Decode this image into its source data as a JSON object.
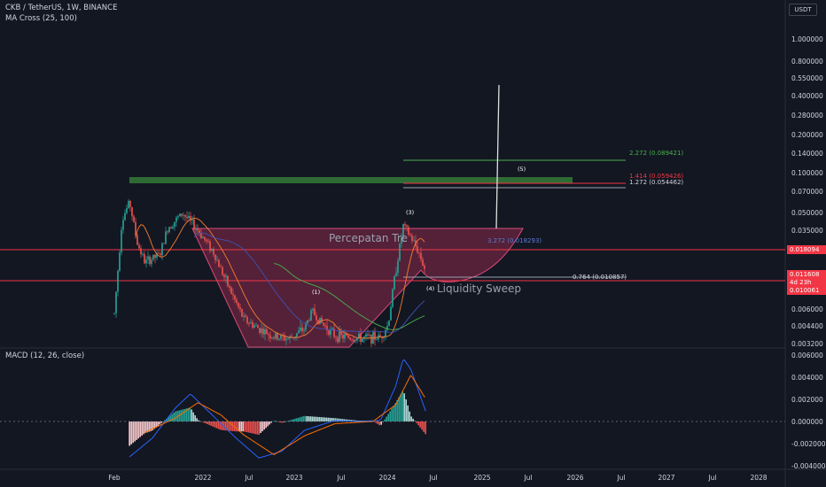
{
  "header": {
    "symbol_title": "CKB / TetherUS, 1W, BINANCE",
    "indicator_ma": "MA Cross (25, 100)",
    "indicator_macd": "MACD (12, 26, close)"
  },
  "price_axis": {
    "currency": "USDT",
    "ticks": [
      "1.000000",
      "0.800000",
      "0.550000",
      "0.400000",
      "0.280000",
      "0.200000",
      "0.140000",
      "0.100000",
      "0.070000",
      "0.050000",
      "0.035000",
      "0.025000",
      "0.006000",
      "0.004400",
      "0.003200"
    ],
    "badges": {
      "level_upper": "0.018094",
      "current_price": "0.011608",
      "countdown": "4d 23h",
      "level_lower": "0.010061"
    }
  },
  "macd_axis": {
    "ticks": [
      "0.006000",
      "0.004000",
      "0.002000",
      "0.000000",
      "-0.002000",
      "-0.004000"
    ]
  },
  "time_axis": {
    "labels": [
      "Feb",
      "2022",
      "Jul",
      "2023",
      "Jul",
      "2024",
      "Jul",
      "2025",
      "Jul",
      "2026",
      "Jul",
      "2027",
      "Jul",
      "2028"
    ]
  },
  "annotations": {
    "fib_1": "2.272 (0.089421)",
    "fib_2": "1.414 (0.059426)",
    "fib_3": "1.272 (0.054462)",
    "fib_4": "0.764 (0.010857)",
    "fib_5": "3.272 (0.018293)",
    "wave_1": "(1)",
    "wave_3": "(3)",
    "wave_4": "(4)",
    "wave_5": "(5)",
    "text_trend": "Percepatan Tre",
    "text_sweep": "Liquidity Sweep"
  },
  "colors": {
    "background": "#131722",
    "up": "#26a69a",
    "down": "#ef5350",
    "level_line": "#f23645",
    "cup_fill": "#8a2a4a",
    "supply_zone": "#2e6b34",
    "ma_fast": "#f57c33",
    "ma_slow": "#3f51b5",
    "ma_long": "#4caf50"
  },
  "chart_data": [
    {
      "type": "candlestick",
      "title": "CKB / TetherUS, 1W, BINANCE",
      "y_scale": "log",
      "ylim": [
        0.0032,
        1.0
      ],
      "x_labels": [
        "Feb",
        "2022",
        "Jul",
        "2023",
        "Jul",
        "2024",
        "Jul",
        "2025",
        "Jul",
        "2026",
        "Jul",
        "2027",
        "Jul",
        "2028"
      ],
      "price_path": [
        [
          "2021-02",
          0.0055
        ],
        [
          "2021-03",
          0.03
        ],
        [
          "2021-04",
          0.042
        ],
        [
          "2021-05",
          0.02
        ],
        [
          "2021-06",
          0.014
        ],
        [
          "2021-08",
          0.016
        ],
        [
          "2021-09",
          0.026
        ],
        [
          "2021-11",
          0.034
        ],
        [
          "2022-01",
          0.025
        ],
        [
          "2022-03",
          0.017
        ],
        [
          "2022-05",
          0.009
        ],
        [
          "2022-07",
          0.005
        ],
        [
          "2022-09",
          0.0042
        ],
        [
          "2022-11",
          0.0036
        ],
        [
          "2023-01",
          0.0035
        ],
        [
          "2023-03",
          0.0042
        ],
        [
          "2023-04",
          0.0058
        ],
        [
          "2023-05",
          0.0048
        ],
        [
          "2023-07",
          0.0037
        ],
        [
          "2023-10",
          0.0035
        ],
        [
          "2024-01",
          0.0036
        ],
        [
          "2024-02",
          0.0045
        ],
        [
          "2024-03",
          0.012
        ],
        [
          "2024-04",
          0.027
        ],
        [
          "2024-05",
          0.022
        ],
        [
          "2024-06",
          0.017
        ],
        [
          "2024-07",
          0.011608
        ]
      ],
      "levels": [
        0.018094,
        0.010061
      ],
      "fib_levels": [
        {
          "ratio": 2.272,
          "price": 0.089421
        },
        {
          "ratio": 1.414,
          "price": 0.059426
        },
        {
          "ratio": 1.272,
          "price": 0.054462
        },
        {
          "ratio": 3.272,
          "price": 0.018293
        },
        {
          "ratio": 0.764,
          "price": 0.010857
        }
      ],
      "supply_zone": [
        0.0593,
        0.0675
      ],
      "current_price": 0.011608
    },
    {
      "type": "macd",
      "title": "MACD (12, 26, close)",
      "ylim": [
        -0.0044,
        0.006
      ],
      "ticks": [
        0.006,
        0.004,
        0.002,
        0.0,
        -0.002,
        -0.004
      ],
      "macd_path": [
        [
          "2021-04",
          -0.0032
        ],
        [
          "2021-07",
          -0.0015
        ],
        [
          "2021-10",
          0.0012
        ],
        [
          "2021-12",
          0.0025
        ],
        [
          "2022-03",
          0.0005
        ],
        [
          "2022-06",
          -0.0015
        ],
        [
          "2022-09",
          -0.0033
        ],
        [
          "2022-12",
          -0.0027
        ],
        [
          "2023-03",
          -0.0008
        ],
        [
          "2023-07",
          0.0001
        ],
        [
          "2023-10",
          0.0
        ],
        [
          "2024-01",
          0.0001
        ],
        [
          "2024-03",
          0.0032
        ],
        [
          "2024-04",
          0.0057
        ],
        [
          "2024-05",
          0.0047
        ],
        [
          "2024-07",
          0.0008
        ]
      ],
      "signal_path": [
        [
          "2021-06",
          -0.001
        ],
        [
          "2021-10",
          0.0003
        ],
        [
          "2022-01",
          0.0017
        ],
        [
          "2022-04",
          0.0006
        ],
        [
          "2022-07",
          -0.0012
        ],
        [
          "2022-11",
          -0.003
        ],
        [
          "2023-03",
          -0.0013
        ],
        [
          "2023-07",
          -0.0002
        ],
        [
          "2023-12",
          0.0
        ],
        [
          "2024-03",
          0.0015
        ],
        [
          "2024-05",
          0.0042
        ],
        [
          "2024-07",
          0.002
        ]
      ]
    }
  ]
}
